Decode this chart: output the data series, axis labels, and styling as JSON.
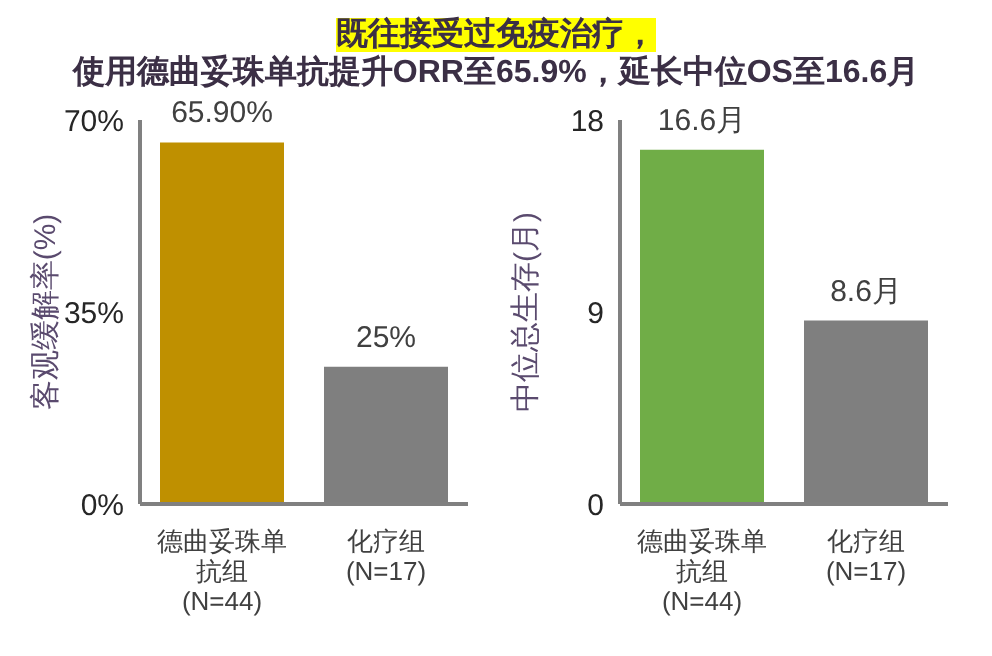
{
  "chart_data": [
    {
      "type": "bar",
      "title": "既往接受过免疫治疗，",
      "subtitle": "使用德曲妥珠单抗提升ORR至65.9%，延长中位OS至16.6月",
      "ylabel": "客观缓解率(%)",
      "categories": [
        "德曲妥珠单抗组 (N=44)",
        "化疗组 (N=17)"
      ],
      "values": [
        65.9,
        25
      ],
      "colors": [
        "#bf9000",
        "#7f7f7f"
      ],
      "value_labels": [
        "65.90%",
        "25%"
      ],
      "ylim": [
        0,
        70
      ],
      "yticks": [
        {
          "value": 0,
          "label": "0%"
        },
        {
          "value": 35,
          "label": "35%"
        },
        {
          "value": 70,
          "label": "70%"
        }
      ],
      "grid": false,
      "legend": false
    },
    {
      "type": "bar",
      "ylabel": "中位总生存(月)",
      "categories": [
        "德曲妥珠单抗组 (N=44)",
        "化疗组 (N=17)"
      ],
      "values": [
        16.6,
        8.6
      ],
      "colors": [
        "#70ad47",
        "#7f7f7f"
      ],
      "value_labels": [
        "16.6月",
        "8.6月"
      ],
      "ylim": [
        0,
        18
      ],
      "yticks": [
        0,
        9,
        18
      ],
      "grid": false,
      "legend": false
    }
  ]
}
